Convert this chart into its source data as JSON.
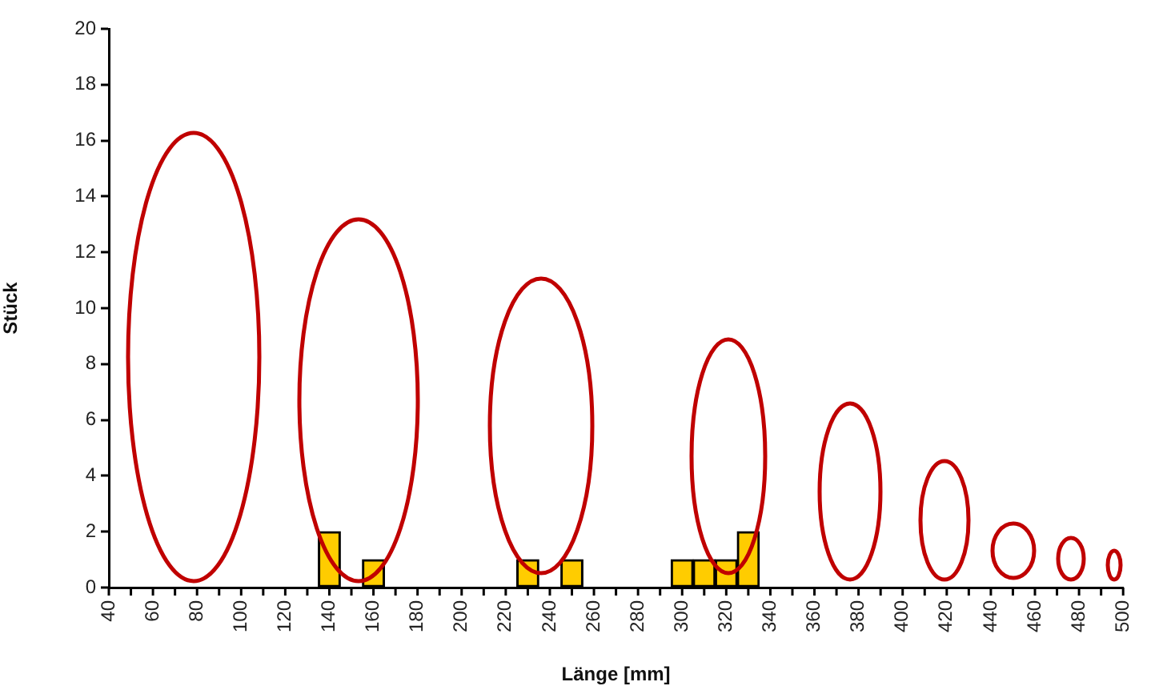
{
  "chart_data": {
    "type": "bar",
    "xlabel": "Länge [mm]",
    "ylabel": "Stück",
    "x": [
      140,
      160,
      230,
      250,
      300,
      310,
      320,
      330
    ],
    "values": [
      2,
      1,
      1,
      1,
      1,
      1,
      1,
      2
    ],
    "color": "#ffcc00",
    "xlim": [
      40,
      500
    ],
    "xticks": [
      40,
      {
        "value": 50,
        "label": null
      },
      60,
      {
        "value": 70,
        "label": null
      },
      80,
      {
        "value": 90,
        "label": null
      },
      100,
      {
        "value": 110,
        "label": null
      },
      120,
      {
        "value": 130,
        "label": null
      },
      140,
      {
        "value": 150,
        "label": null
      },
      160,
      {
        "value": 170,
        "label": null
      },
      180,
      {
        "value": 190,
        "label": null
      },
      200,
      {
        "value": 210,
        "label": null
      },
      220,
      {
        "value": 230,
        "label": null
      },
      240,
      {
        "value": 250,
        "label": null
      },
      260,
      {
        "value": 270,
        "label": null
      },
      280,
      {
        "value": 290,
        "label": null
      },
      300,
      {
        "value": 310,
        "label": null
      },
      320,
      {
        "value": 330,
        "label": null
      },
      340,
      {
        "value": 350,
        "label": null
      },
      360,
      {
        "value": 370,
        "label": null
      },
      380,
      {
        "value": 390,
        "label": null
      },
      400,
      {
        "value": 410,
        "label": null
      },
      420,
      {
        "value": 430,
        "label": null
      },
      440,
      {
        "value": 450,
        "label": null
      },
      460,
      {
        "value": 470,
        "label": null
      },
      480,
      {
        "value": 490,
        "label": null
      },
      500
    ],
    "ylim": [
      0,
      20
    ],
    "yticks": [
      0,
      2,
      4,
      6,
      8,
      10,
      12,
      14,
      16,
      18,
      20
    ],
    "grid": false,
    "legend": false
  }
}
